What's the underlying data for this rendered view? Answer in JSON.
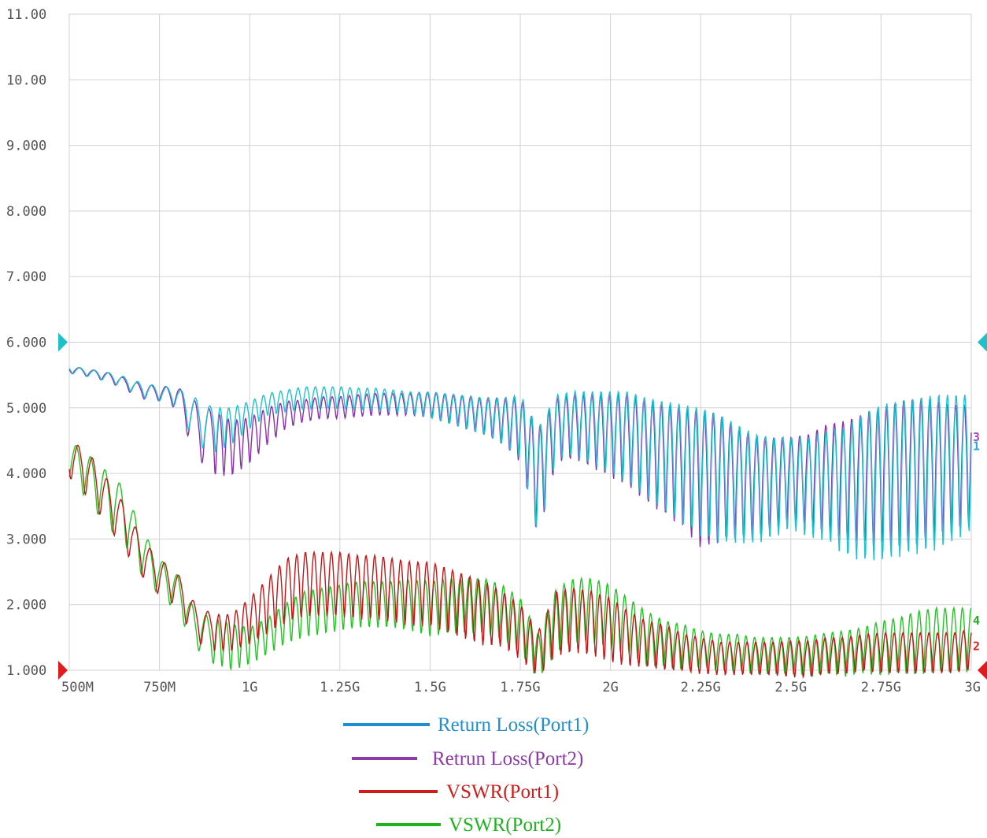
{
  "chart_data": {
    "type": "line",
    "title": "",
    "xlabel": "",
    "ylabel": "",
    "xlim": [
      500,
      3000
    ],
    "ylim": [
      1,
      11
    ],
    "y_ticks": [
      {
        "value": 11,
        "label": "11.00"
      },
      {
        "value": 10,
        "label": "10.00"
      },
      {
        "value": 9,
        "label": "9.000"
      },
      {
        "value": 8,
        "label": "8.000"
      },
      {
        "value": 7,
        "label": "7.000"
      },
      {
        "value": 6,
        "label": "6.000"
      },
      {
        "value": 5,
        "label": "5.000"
      },
      {
        "value": 4,
        "label": "4.000"
      },
      {
        "value": 3,
        "label": "3.000"
      },
      {
        "value": 2,
        "label": "2.000"
      },
      {
        "value": 1,
        "label": "1.000"
      }
    ],
    "x_ticks": [
      {
        "value": 500,
        "label": "500M"
      },
      {
        "value": 750,
        "label": "750M"
      },
      {
        "value": 1000,
        "label": "1G"
      },
      {
        "value": 1250,
        "label": "1.25G"
      },
      {
        "value": 1500,
        "label": "1.5G"
      },
      {
        "value": 1750,
        "label": "1.75G"
      },
      {
        "value": 2000,
        "label": "2G"
      },
      {
        "value": 2250,
        "label": "2.25G"
      },
      {
        "value": 2500,
        "label": "2.5G"
      },
      {
        "value": 2750,
        "label": "2.75G"
      },
      {
        "value": 3000,
        "label": "3G"
      }
    ],
    "reference_markers": [
      {
        "value": 6,
        "color": "#1fc0c8"
      },
      {
        "value": 1,
        "color": "#e11b1b"
      }
    ],
    "grid": true,
    "legend_position": "bottom",
    "series": [
      {
        "name": "Return Loss(Port1)",
        "color": "#1cc2d0",
        "legend_color": "#1f8fcf",
        "label_color": "#2aa7df",
        "end_label": "1",
        "x": [
          500,
          550,
          600,
          650,
          700,
          750,
          800,
          850,
          900,
          950,
          1000,
          1050,
          1100,
          1150,
          1200,
          1250,
          1300,
          1350,
          1400,
          1450,
          1500,
          1550,
          1600,
          1650,
          1700,
          1750,
          1800,
          1850,
          1900,
          1950,
          2000,
          2050,
          2100,
          2150,
          2200,
          2250,
          2300,
          2350,
          2400,
          2450,
          2500,
          2550,
          2600,
          2650,
          2700,
          2750,
          2800,
          2850,
          2900,
          2950,
          3000
        ],
        "y": [
          5.6,
          5.55,
          5.5,
          5.42,
          5.3,
          5.25,
          5.2,
          4.9,
          4.75,
          4.8,
          4.95,
          5.1,
          5.15,
          5.2,
          5.2,
          5.2,
          5.18,
          5.18,
          5.15,
          5.12,
          5.1,
          5.05,
          5.0,
          4.95,
          4.9,
          4.85,
          4.1,
          4.85,
          4.9,
          4.85,
          4.8,
          4.75,
          4.6,
          4.5,
          4.4,
          4.3,
          4.2,
          4.1,
          4.0,
          4.0,
          4.05,
          4.0,
          4.05,
          4.0,
          4.1,
          4.2,
          4.25,
          4.3,
          4.35,
          4.4,
          4.45
        ],
        "amplitude": [
          0.04,
          0.04,
          0.05,
          0.06,
          0.08,
          0.08,
          0.1,
          0.25,
          0.25,
          0.2,
          0.15,
          0.12,
          0.12,
          0.12,
          0.12,
          0.12,
          0.12,
          0.12,
          0.12,
          0.12,
          0.14,
          0.16,
          0.18,
          0.2,
          0.25,
          0.35,
          0.6,
          0.35,
          0.35,
          0.4,
          0.45,
          0.5,
          0.55,
          0.6,
          0.65,
          0.7,
          0.7,
          0.65,
          0.6,
          0.55,
          0.5,
          0.55,
          0.6,
          0.7,
          0.8,
          0.85,
          0.85,
          0.85,
          0.85,
          0.8,
          0.75
        ]
      },
      {
        "name": "Retrun Loss(Port2)",
        "color": "#8b2fb0",
        "legend_color": "#8e3aa8",
        "label_color": "#a64bbf",
        "end_label": "3",
        "x": [
          500,
          550,
          600,
          650,
          700,
          750,
          800,
          850,
          900,
          950,
          1000,
          1050,
          1100,
          1150,
          1200,
          1250,
          1300,
          1350,
          1400,
          1450,
          1500,
          1550,
          1600,
          1650,
          1700,
          1750,
          1800,
          1850,
          1900,
          1950,
          2000,
          2050,
          2100,
          2150,
          2200,
          2250,
          2300,
          2350,
          2400,
          2450,
          2500,
          2550,
          2600,
          2650,
          2700,
          2750,
          2800,
          2850,
          2900,
          2950,
          3000
        ],
        "y": [
          5.6,
          5.55,
          5.5,
          5.4,
          5.28,
          5.25,
          5.2,
          4.8,
          4.6,
          4.5,
          4.6,
          4.8,
          4.95,
          5.0,
          5.05,
          5.05,
          5.08,
          5.1,
          5.1,
          5.1,
          5.1,
          5.05,
          5.0,
          4.95,
          4.9,
          4.8,
          4.1,
          4.8,
          4.85,
          4.8,
          4.75,
          4.7,
          4.55,
          4.45,
          4.35,
          4.2,
          4.2,
          4.1,
          4.0,
          4.05,
          4.1,
          4.1,
          4.15,
          4.15,
          4.2,
          4.25,
          4.3,
          4.35,
          4.35,
          4.35,
          4.4
        ],
        "amplitude": [
          0.04,
          0.04,
          0.05,
          0.06,
          0.08,
          0.08,
          0.12,
          0.3,
          0.35,
          0.3,
          0.25,
          0.2,
          0.15,
          0.12,
          0.12,
          0.12,
          0.12,
          0.12,
          0.12,
          0.12,
          0.14,
          0.16,
          0.18,
          0.2,
          0.25,
          0.35,
          0.6,
          0.35,
          0.35,
          0.4,
          0.45,
          0.5,
          0.55,
          0.6,
          0.65,
          0.75,
          0.7,
          0.6,
          0.55,
          0.5,
          0.45,
          0.5,
          0.6,
          0.65,
          0.7,
          0.75,
          0.8,
          0.8,
          0.75,
          0.7,
          0.65
        ]
      },
      {
        "name": "VSWR(Port1)",
        "color": "#c41616",
        "legend_color": "#d11c1c",
        "label_color": "#e12424",
        "end_label": "2",
        "x": [
          500,
          550,
          600,
          650,
          700,
          750,
          800,
          850,
          900,
          950,
          1000,
          1050,
          1100,
          1150,
          1200,
          1250,
          1300,
          1350,
          1400,
          1450,
          1500,
          1550,
          1600,
          1650,
          1700,
          1750,
          1800,
          1850,
          1900,
          1950,
          2000,
          2050,
          2100,
          2150,
          2200,
          2250,
          2300,
          2350,
          2400,
          2450,
          2500,
          2550,
          2600,
          2650,
          2700,
          2750,
          2800,
          2850,
          2900,
          2950,
          3000
        ],
        "y": [
          4.3,
          4.1,
          3.7,
          3.3,
          2.8,
          2.5,
          2.3,
          1.8,
          1.65,
          1.65,
          1.85,
          2.1,
          2.35,
          2.45,
          2.45,
          2.45,
          2.4,
          2.4,
          2.35,
          2.3,
          2.3,
          2.2,
          2.1,
          2.0,
          1.9,
          1.7,
          1.35,
          1.85,
          1.9,
          1.85,
          1.75,
          1.6,
          1.5,
          1.45,
          1.35,
          1.3,
          1.25,
          1.25,
          1.25,
          1.25,
          1.25,
          1.25,
          1.3,
          1.3,
          1.35,
          1.35,
          1.35,
          1.35,
          1.35,
          1.35,
          1.4
        ],
        "amplitude": [
          0.2,
          0.25,
          0.25,
          0.25,
          0.2,
          0.2,
          0.18,
          0.2,
          0.2,
          0.2,
          0.25,
          0.3,
          0.35,
          0.35,
          0.35,
          0.35,
          0.35,
          0.35,
          0.35,
          0.35,
          0.35,
          0.35,
          0.35,
          0.35,
          0.3,
          0.3,
          0.25,
          0.35,
          0.35,
          0.35,
          0.35,
          0.3,
          0.25,
          0.25,
          0.2,
          0.2,
          0.18,
          0.18,
          0.18,
          0.18,
          0.2,
          0.2,
          0.2,
          0.2,
          0.2,
          0.22,
          0.22,
          0.22,
          0.22,
          0.22,
          0.22
        ]
      },
      {
        "name": "VSWR(Port2)",
        "color": "#22c422",
        "legend_color": "#1fb21f",
        "label_color": "#28a828",
        "end_label": "4",
        "x": [
          500,
          550,
          600,
          650,
          700,
          750,
          800,
          850,
          900,
          950,
          1000,
          1050,
          1100,
          1150,
          1200,
          1250,
          1300,
          1350,
          1400,
          1450,
          1500,
          1550,
          1600,
          1650,
          1700,
          1750,
          1800,
          1850,
          1900,
          1950,
          2000,
          2050,
          2100,
          2150,
          2200,
          2250,
          2300,
          2350,
          2400,
          2450,
          2500,
          2550,
          2600,
          2650,
          2700,
          2750,
          2800,
          2850,
          2900,
          2950,
          3000
        ],
        "y": [
          4.3,
          4.05,
          3.75,
          3.5,
          2.9,
          2.5,
          2.25,
          1.7,
          1.55,
          1.45,
          1.45,
          1.6,
          1.8,
          1.95,
          2.0,
          2.05,
          2.1,
          2.1,
          2.1,
          2.1,
          2.05,
          2.1,
          2.1,
          2.1,
          2.0,
          1.8,
          1.3,
          1.9,
          2.05,
          2.05,
          1.95,
          1.8,
          1.6,
          1.5,
          1.45,
          1.4,
          1.35,
          1.35,
          1.3,
          1.3,
          1.3,
          1.3,
          1.35,
          1.35,
          1.4,
          1.45,
          1.5,
          1.55,
          1.6,
          1.6,
          1.6
        ],
        "amplitude": [
          0.2,
          0.25,
          0.3,
          0.3,
          0.25,
          0.2,
          0.2,
          0.2,
          0.25,
          0.25,
          0.2,
          0.2,
          0.22,
          0.25,
          0.25,
          0.25,
          0.25,
          0.25,
          0.25,
          0.28,
          0.3,
          0.3,
          0.3,
          0.3,
          0.3,
          0.3,
          0.25,
          0.35,
          0.35,
          0.35,
          0.35,
          0.3,
          0.3,
          0.25,
          0.25,
          0.2,
          0.2,
          0.2,
          0.2,
          0.2,
          0.2,
          0.22,
          0.22,
          0.25,
          0.25,
          0.3,
          0.3,
          0.35,
          0.35,
          0.35,
          0.35
        ]
      }
    ]
  }
}
